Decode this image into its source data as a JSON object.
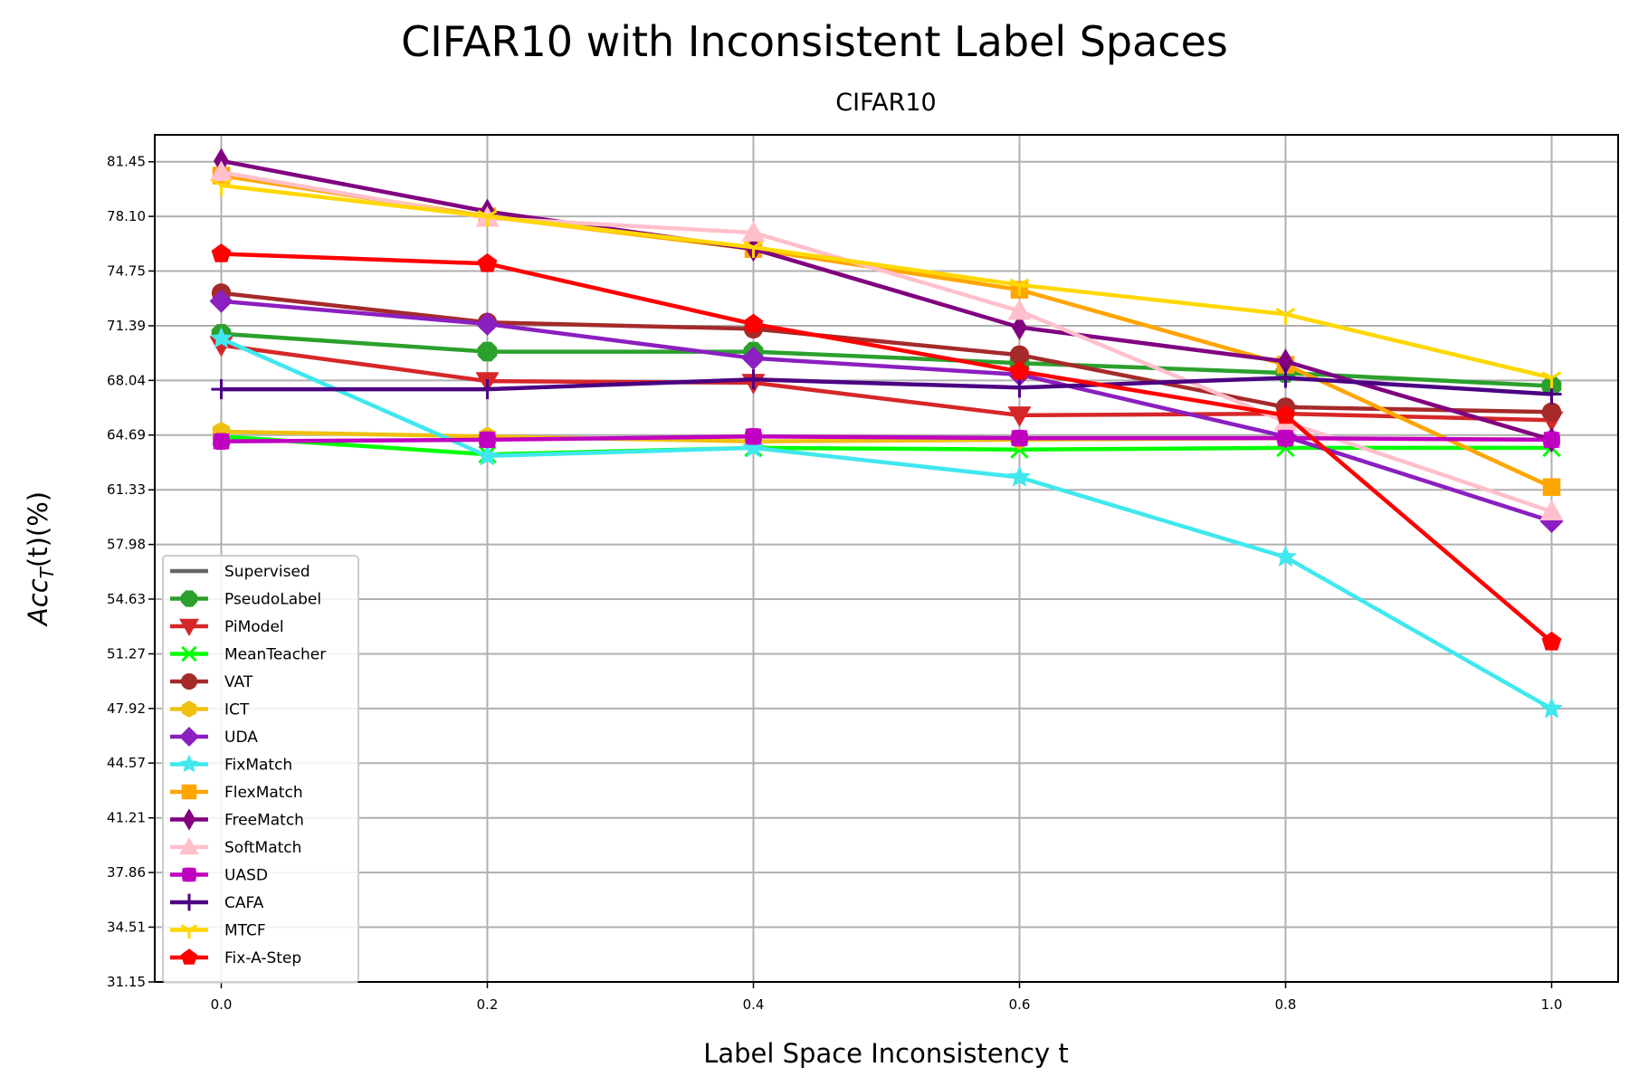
{
  "figure_title": "CIFAR10 with Inconsistent Label Spaces",
  "chart_data": {
    "type": "line",
    "title": "CIFAR10",
    "xlabel": "Label Space Inconsistency t",
    "ylabel_base": "Acc",
    "ylabel_sub": "T",
    "ylabel_rest": "(t)(%)",
    "x": [
      0.0,
      0.2,
      0.4,
      0.6,
      0.8,
      1.0
    ],
    "xticks": [
      "0.0",
      "0.2",
      "0.4",
      "0.6",
      "0.8",
      "1.0"
    ],
    "xlim": [
      -0.05,
      1.05
    ],
    "yticks": [
      "31.15",
      "34.51",
      "37.86",
      "41.21",
      "44.57",
      "47.92",
      "51.27",
      "54.63",
      "57.98",
      "61.33",
      "64.69",
      "68.04",
      "71.39",
      "74.75",
      "78.10",
      "81.45"
    ],
    "ylim": [
      31.15,
      83.1
    ],
    "grid": true,
    "legend_position": "lower-left",
    "series": [
      {
        "name": "Supervised",
        "color": "#666666",
        "marker": "none",
        "values": [
          null,
          null,
          null,
          null,
          null,
          null
        ]
      },
      {
        "name": "PseudoLabel",
        "color": "#2ca02c",
        "marker": "octagon",
        "values": [
          70.9,
          69.8,
          69.8,
          69.1,
          68.5,
          67.7
        ]
      },
      {
        "name": "PiModel",
        "color": "#d62728",
        "marker": "triangle-down",
        "values": [
          70.2,
          68.0,
          67.9,
          65.9,
          66.0,
          65.6
        ]
      },
      {
        "name": "MeanTeacher",
        "color": "#00ff00",
        "marker": "x",
        "values": [
          64.6,
          63.5,
          63.9,
          63.8,
          63.9,
          63.9
        ]
      },
      {
        "name": "VAT",
        "color": "#a52a2a",
        "marker": "circle",
        "values": [
          73.4,
          71.6,
          71.2,
          69.6,
          66.4,
          66.1
        ]
      },
      {
        "name": "ICT",
        "color": "#f0c010",
        "marker": "hexagon",
        "values": [
          64.9,
          64.6,
          64.3,
          64.4,
          64.5,
          64.4
        ]
      },
      {
        "name": "UDA",
        "color": "#8b1fbf",
        "marker": "diamond",
        "values": [
          72.9,
          71.5,
          69.4,
          68.4,
          64.6,
          59.4
        ]
      },
      {
        "name": "FixMatch",
        "color": "#40e8ee",
        "marker": "star",
        "values": [
          70.6,
          63.4,
          63.9,
          62.1,
          57.2,
          47.9
        ]
      },
      {
        "name": "FlexMatch",
        "color": "#ffa500",
        "marker": "square",
        "values": [
          80.6,
          78.1,
          76.1,
          73.6,
          69.0,
          61.5
        ]
      },
      {
        "name": "FreeMatch",
        "color": "#800080",
        "marker": "thin-diamond",
        "values": [
          81.5,
          78.4,
          76.1,
          71.3,
          69.2,
          64.4
        ]
      },
      {
        "name": "SoftMatch",
        "color": "#ffc0cb",
        "marker": "triangle-up",
        "values": [
          80.8,
          78.0,
          77.1,
          72.3,
          65.5,
          60.0
        ]
      },
      {
        "name": "UASD",
        "color": "#c000c0",
        "marker": "plus-filled",
        "values": [
          64.3,
          64.4,
          64.6,
          64.5,
          64.5,
          64.4
        ]
      },
      {
        "name": "CAFA",
        "color": "#4b0082",
        "marker": "plus",
        "values": [
          67.5,
          67.5,
          68.1,
          67.6,
          68.2,
          67.2
        ]
      },
      {
        "name": "MTCF",
        "color": "#ffd700",
        "marker": "tri-down",
        "values": [
          80.0,
          78.1,
          76.2,
          73.9,
          72.1,
          68.2
        ]
      },
      {
        "name": "Fix-A-Step",
        "color": "#ff0000",
        "marker": "pentagon",
        "values": [
          75.8,
          75.2,
          71.5,
          68.6,
          65.9,
          52.0
        ]
      }
    ]
  }
}
